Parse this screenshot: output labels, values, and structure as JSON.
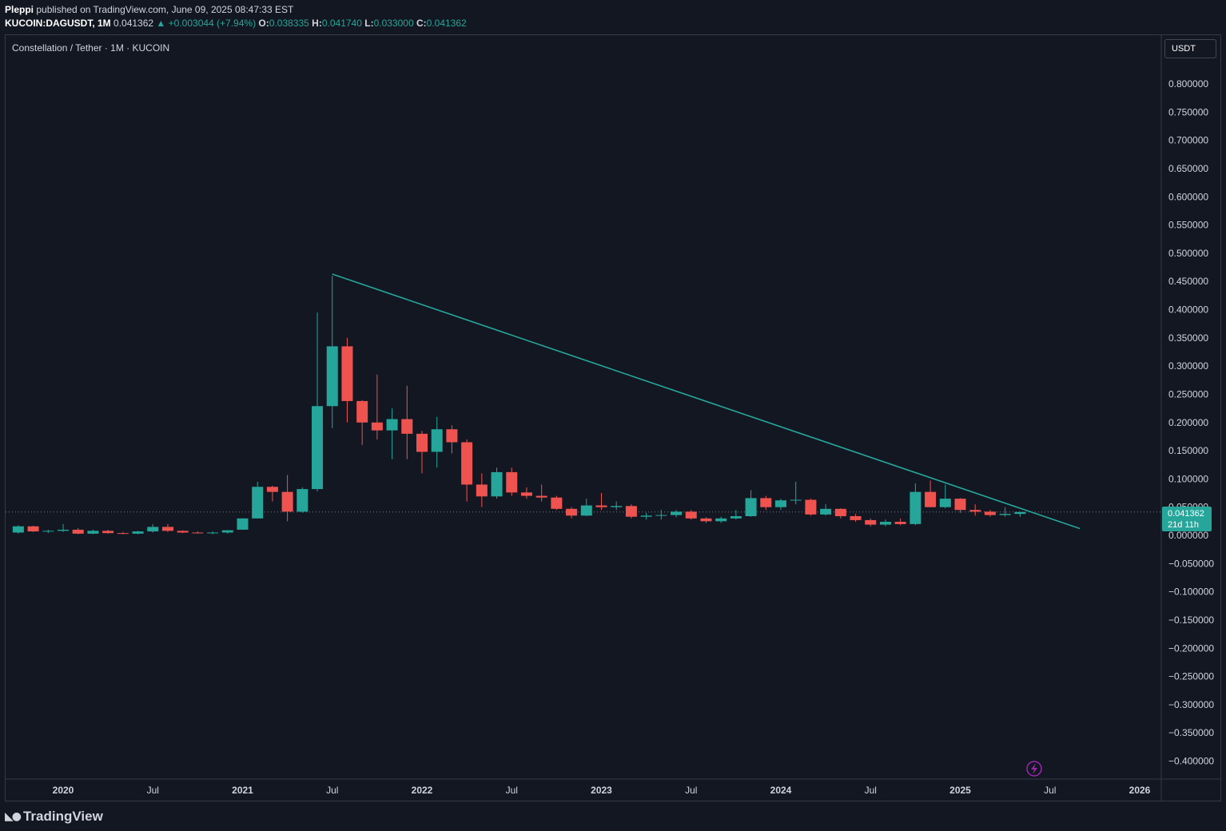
{
  "header": {
    "author": "Pleppi",
    "published_text": "published on TradingView.com, June 09, 2025 08:47:33 EST",
    "symbol": "KUCOIN:DAGUSDT, 1M",
    "last": "0.041362",
    "change": "+0.003044 (+7.94%)",
    "open": "0.038335",
    "high": "0.041740",
    "low": "0.033000",
    "close": "0.041362"
  },
  "legend": {
    "title": "Constellation / Tether · 1M · KUCOIN"
  },
  "currency_button": {
    "label": "USDT"
  },
  "price_tag": {
    "value": "0.041362",
    "countdown": "21d 11h"
  },
  "footer": {
    "brand": "TradingView"
  },
  "colors": {
    "up": "#26a69a",
    "down": "#ef5350",
    "background": "#131722",
    "trendline": "#26a69a"
  },
  "chart_data": {
    "type": "candlestick",
    "timeframe": "1M",
    "y_ticks": [
      0.8,
      0.75,
      0.7,
      0.65,
      0.6,
      0.55,
      0.5,
      0.45,
      0.4,
      0.35,
      0.3,
      0.25,
      0.2,
      0.15,
      0.1,
      0.05,
      0.0,
      -0.05,
      -0.1,
      -0.15,
      -0.2,
      -0.25,
      -0.3,
      -0.35,
      -0.4
    ],
    "y_tick_labels": [
      "0.800000",
      "0.750000",
      "0.700000",
      "0.650000",
      "0.600000",
      "0.550000",
      "0.500000",
      "0.450000",
      "0.400000",
      "0.350000",
      "0.300000",
      "0.250000",
      "0.200000",
      "0.150000",
      "0.100000",
      "0.050000",
      "0.000000",
      "−0.050000",
      "−0.100000",
      "−0.150000",
      "−0.200000",
      "−0.250000",
      "−0.300000",
      "−0.350000",
      "−0.400000"
    ],
    "x_labels": [
      {
        "label": "2020",
        "date": "2020-01",
        "bold": true
      },
      {
        "label": "Jul",
        "date": "2020-07",
        "bold": false
      },
      {
        "label": "2021",
        "date": "2021-01",
        "bold": true
      },
      {
        "label": "Jul",
        "date": "2021-07",
        "bold": false
      },
      {
        "label": "2022",
        "date": "2022-01",
        "bold": true
      },
      {
        "label": "Jul",
        "date": "2022-07",
        "bold": false
      },
      {
        "label": "2023",
        "date": "2023-01",
        "bold": true
      },
      {
        "label": "Jul",
        "date": "2023-07",
        "bold": false
      },
      {
        "label": "2024",
        "date": "2024-01",
        "bold": true
      },
      {
        "label": "Jul",
        "date": "2024-07",
        "bold": false
      },
      {
        "label": "2025",
        "date": "2025-01",
        "bold": true
      },
      {
        "label": "Jul",
        "date": "2025-07",
        "bold": false
      },
      {
        "label": "2026",
        "date": "2026-01",
        "bold": true
      }
    ],
    "candles": [
      {
        "t": "2019-10",
        "o": 0.005,
        "h": 0.018,
        "l": 0.003,
        "c": 0.016
      },
      {
        "t": "2019-11",
        "o": 0.016,
        "h": 0.017,
        "l": 0.006,
        "c": 0.007
      },
      {
        "t": "2019-12",
        "o": 0.007,
        "h": 0.01,
        "l": 0.004,
        "c": 0.008
      },
      {
        "t": "2020-01",
        "o": 0.008,
        "h": 0.02,
        "l": 0.006,
        "c": 0.01
      },
      {
        "t": "2020-02",
        "o": 0.01,
        "h": 0.013,
        "l": 0.002,
        "c": 0.003
      },
      {
        "t": "2020-03",
        "o": 0.003,
        "h": 0.01,
        "l": 0.002,
        "c": 0.008
      },
      {
        "t": "2020-04",
        "o": 0.008,
        "h": 0.01,
        "l": 0.003,
        "c": 0.004
      },
      {
        "t": "2020-05",
        "o": 0.004,
        "h": 0.006,
        "l": 0.002,
        "c": 0.003
      },
      {
        "t": "2020-06",
        "o": 0.003,
        "h": 0.008,
        "l": 0.002,
        "c": 0.007
      },
      {
        "t": "2020-07",
        "o": 0.007,
        "h": 0.02,
        "l": 0.005,
        "c": 0.015
      },
      {
        "t": "2020-08",
        "o": 0.015,
        "h": 0.02,
        "l": 0.006,
        "c": 0.008
      },
      {
        "t": "2020-09",
        "o": 0.008,
        "h": 0.009,
        "l": 0.004,
        "c": 0.005
      },
      {
        "t": "2020-10",
        "o": 0.005,
        "h": 0.007,
        "l": 0.003,
        "c": 0.004
      },
      {
        "t": "2020-11",
        "o": 0.004,
        "h": 0.007,
        "l": 0.002,
        "c": 0.005
      },
      {
        "t": "2020-12",
        "o": 0.005,
        "h": 0.009,
        "l": 0.003,
        "c": 0.009
      },
      {
        "t": "2021-01",
        "o": 0.01,
        "h": 0.03,
        "l": 0.01,
        "c": 0.03
      },
      {
        "t": "2021-02",
        "o": 0.03,
        "h": 0.095,
        "l": 0.03,
        "c": 0.086
      },
      {
        "t": "2021-03",
        "o": 0.086,
        "h": 0.088,
        "l": 0.06,
        "c": 0.077
      },
      {
        "t": "2021-04",
        "o": 0.077,
        "h": 0.107,
        "l": 0.025,
        "c": 0.042
      },
      {
        "t": "2021-05",
        "o": 0.042,
        "h": 0.085,
        "l": 0.04,
        "c": 0.082
      },
      {
        "t": "2021-06",
        "o": 0.082,
        "h": 0.395,
        "l": 0.078,
        "c": 0.229
      },
      {
        "t": "2021-07",
        "o": 0.229,
        "h": 0.46,
        "l": 0.19,
        "c": 0.335
      },
      {
        "t": "2021-08",
        "o": 0.335,
        "h": 0.35,
        "l": 0.2,
        "c": 0.238
      },
      {
        "t": "2021-09",
        "o": 0.238,
        "h": 0.24,
        "l": 0.16,
        "c": 0.2
      },
      {
        "t": "2021-10",
        "o": 0.2,
        "h": 0.285,
        "l": 0.17,
        "c": 0.186
      },
      {
        "t": "2021-11",
        "o": 0.186,
        "h": 0.225,
        "l": 0.135,
        "c": 0.206
      },
      {
        "t": "2021-12",
        "o": 0.206,
        "h": 0.265,
        "l": 0.135,
        "c": 0.18
      },
      {
        "t": "2022-01",
        "o": 0.18,
        "h": 0.185,
        "l": 0.11,
        "c": 0.148
      },
      {
        "t": "2022-02",
        "o": 0.148,
        "h": 0.21,
        "l": 0.12,
        "c": 0.188
      },
      {
        "t": "2022-03",
        "o": 0.188,
        "h": 0.195,
        "l": 0.145,
        "c": 0.165
      },
      {
        "t": "2022-04",
        "o": 0.165,
        "h": 0.17,
        "l": 0.06,
        "c": 0.09
      },
      {
        "t": "2022-05",
        "o": 0.09,
        "h": 0.11,
        "l": 0.05,
        "c": 0.069
      },
      {
        "t": "2022-06",
        "o": 0.069,
        "h": 0.12,
        "l": 0.065,
        "c": 0.112
      },
      {
        "t": "2022-07",
        "o": 0.112,
        "h": 0.12,
        "l": 0.07,
        "c": 0.076
      },
      {
        "t": "2022-08",
        "o": 0.076,
        "h": 0.085,
        "l": 0.065,
        "c": 0.07
      },
      {
        "t": "2022-09",
        "o": 0.07,
        "h": 0.09,
        "l": 0.06,
        "c": 0.067
      },
      {
        "t": "2022-10",
        "o": 0.067,
        "h": 0.07,
        "l": 0.045,
        "c": 0.047
      },
      {
        "t": "2022-11",
        "o": 0.047,
        "h": 0.05,
        "l": 0.03,
        "c": 0.035
      },
      {
        "t": "2022-12",
        "o": 0.035,
        "h": 0.065,
        "l": 0.034,
        "c": 0.053
      },
      {
        "t": "2023-01",
        "o": 0.053,
        "h": 0.075,
        "l": 0.045,
        "c": 0.05
      },
      {
        "t": "2023-02",
        "o": 0.05,
        "h": 0.06,
        "l": 0.045,
        "c": 0.052
      },
      {
        "t": "2023-03",
        "o": 0.052,
        "h": 0.055,
        "l": 0.03,
        "c": 0.033
      },
      {
        "t": "2023-04",
        "o": 0.033,
        "h": 0.04,
        "l": 0.028,
        "c": 0.035
      },
      {
        "t": "2023-05",
        "o": 0.035,
        "h": 0.045,
        "l": 0.028,
        "c": 0.036
      },
      {
        "t": "2023-06",
        "o": 0.036,
        "h": 0.045,
        "l": 0.032,
        "c": 0.042
      },
      {
        "t": "2023-07",
        "o": 0.042,
        "h": 0.045,
        "l": 0.028,
        "c": 0.03
      },
      {
        "t": "2023-08",
        "o": 0.03,
        "h": 0.032,
        "l": 0.022,
        "c": 0.025
      },
      {
        "t": "2023-09",
        "o": 0.025,
        "h": 0.033,
        "l": 0.022,
        "c": 0.03
      },
      {
        "t": "2023-10",
        "o": 0.03,
        "h": 0.045,
        "l": 0.028,
        "c": 0.034
      },
      {
        "t": "2023-11",
        "o": 0.034,
        "h": 0.08,
        "l": 0.033,
        "c": 0.066
      },
      {
        "t": "2023-12",
        "o": 0.066,
        "h": 0.07,
        "l": 0.045,
        "c": 0.05
      },
      {
        "t": "2024-01",
        "o": 0.05,
        "h": 0.065,
        "l": 0.045,
        "c": 0.062
      },
      {
        "t": "2024-02",
        "o": 0.062,
        "h": 0.095,
        "l": 0.055,
        "c": 0.063
      },
      {
        "t": "2024-03",
        "o": 0.063,
        "h": 0.065,
        "l": 0.035,
        "c": 0.037
      },
      {
        "t": "2024-04",
        "o": 0.037,
        "h": 0.055,
        "l": 0.035,
        "c": 0.047
      },
      {
        "t": "2024-05",
        "o": 0.047,
        "h": 0.048,
        "l": 0.03,
        "c": 0.034
      },
      {
        "t": "2024-06",
        "o": 0.034,
        "h": 0.038,
        "l": 0.024,
        "c": 0.027
      },
      {
        "t": "2024-07",
        "o": 0.027,
        "h": 0.03,
        "l": 0.016,
        "c": 0.019
      },
      {
        "t": "2024-08",
        "o": 0.019,
        "h": 0.028,
        "l": 0.016,
        "c": 0.024
      },
      {
        "t": "2024-09",
        "o": 0.024,
        "h": 0.03,
        "l": 0.018,
        "c": 0.02
      },
      {
        "t": "2024-10",
        "o": 0.02,
        "h": 0.092,
        "l": 0.018,
        "c": 0.077
      },
      {
        "t": "2024-11",
        "o": 0.077,
        "h": 0.097,
        "l": 0.05,
        "c": 0.05
      },
      {
        "t": "2024-12",
        "o": 0.05,
        "h": 0.09,
        "l": 0.048,
        "c": 0.065
      },
      {
        "t": "2025-01",
        "o": 0.065,
        "h": 0.066,
        "l": 0.04,
        "c": 0.045
      },
      {
        "t": "2025-02",
        "o": 0.045,
        "h": 0.055,
        "l": 0.035,
        "c": 0.042
      },
      {
        "t": "2025-03",
        "o": 0.042,
        "h": 0.045,
        "l": 0.033,
        "c": 0.036
      },
      {
        "t": "2025-04",
        "o": 0.036,
        "h": 0.05,
        "l": 0.033,
        "c": 0.038
      },
      {
        "t": "2025-05",
        "o": 0.038,
        "h": 0.042,
        "l": 0.033,
        "c": 0.041362
      }
    ],
    "trendline": {
      "from": {
        "t": "2021-07",
        "price": 0.463
      },
      "to": {
        "t": "2025-09",
        "price": 0.012
      }
    },
    "last_price_line": 0.041362,
    "grid": false
  }
}
